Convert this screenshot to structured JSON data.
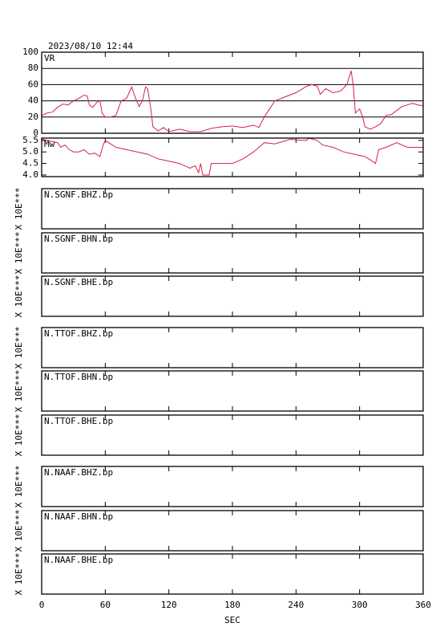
{
  "timestamp": "2023/08/10 12:44",
  "x_axis": {
    "label": "SEC",
    "xlim": [
      0,
      360
    ],
    "xticks": [
      0,
      60,
      120,
      180,
      240,
      300,
      360
    ]
  },
  "chart_data": [
    {
      "type": "line",
      "title": "VR",
      "color": "#d6204a",
      "grid": true,
      "ylim": [
        0,
        100
      ],
      "yticks": [
        0,
        20,
        40,
        60,
        80,
        100
      ],
      "x": [
        0,
        5,
        10,
        15,
        20,
        25,
        30,
        35,
        40,
        43,
        45,
        48,
        52,
        55,
        57,
        60,
        65,
        70,
        75,
        80,
        85,
        88,
        92,
        95,
        98,
        100,
        103,
        105,
        110,
        115,
        120,
        130,
        140,
        150,
        160,
        170,
        180,
        190,
        200,
        205,
        210,
        215,
        220,
        230,
        240,
        250,
        255,
        260,
        263,
        268,
        275,
        282,
        288,
        292,
        294,
        296,
        300,
        303,
        305,
        310,
        315,
        320,
        325,
        330,
        335,
        340,
        345,
        350,
        355,
        360
      ],
      "values": [
        22,
        25,
        26,
        32,
        36,
        35,
        40,
        43,
        47,
        46,
        35,
        32,
        38,
        40,
        25,
        20,
        20,
        22,
        40,
        43,
        57,
        45,
        33,
        40,
        57,
        55,
        30,
        8,
        3,
        7,
        2,
        5,
        2,
        2,
        6,
        8,
        9,
        7,
        10,
        7,
        20,
        30,
        40,
        45,
        50,
        58,
        60,
        58,
        48,
        55,
        50,
        52,
        60,
        77,
        60,
        25,
        30,
        20,
        8,
        5,
        8,
        12,
        22,
        23,
        28,
        33,
        35,
        37,
        35,
        34
      ]
    },
    {
      "type": "line",
      "title": "Mw",
      "color": "#d6204a",
      "grid": false,
      "ylim": [
        3.93,
        5.6
      ],
      "yticks": [
        {
          "value": 4.0,
          "label": "4.0"
        },
        {
          "value": 4.5,
          "label": "4.5"
        },
        {
          "value": 5.0,
          "label": "5.0"
        },
        {
          "value": 5.5,
          "label": "5.5"
        }
      ],
      "x": [
        0,
        5,
        10,
        15,
        18,
        22,
        26,
        30,
        35,
        40,
        45,
        50,
        55,
        58,
        60,
        65,
        70,
        80,
        90,
        100,
        110,
        120,
        130,
        140,
        145,
        148,
        150,
        152,
        158,
        160,
        180,
        190,
        200,
        205,
        210,
        220,
        235,
        245,
        250,
        252,
        260,
        265,
        275,
        285,
        295,
        305,
        312,
        315,
        318,
        325,
        335,
        345,
        360
      ],
      "values": [
        5.55,
        5.5,
        5.45,
        5.4,
        5.2,
        5.3,
        5.1,
        5.0,
        5.0,
        5.1,
        4.9,
        4.95,
        4.8,
        5.3,
        5.5,
        5.35,
        5.2,
        5.1,
        5.0,
        4.9,
        4.7,
        4.6,
        4.5,
        4.3,
        4.4,
        4.1,
        4.5,
        4.0,
        4.0,
        4.5,
        4.5,
        4.7,
        5.0,
        5.2,
        5.4,
        5.35,
        5.55,
        5.5,
        5.5,
        5.6,
        5.5,
        5.3,
        5.2,
        5.0,
        4.9,
        4.8,
        4.6,
        4.5,
        5.1,
        5.2,
        5.4,
        5.2,
        5.2
      ]
    }
  ],
  "traces": [
    {
      "label": "N.SGNF.BHZ.bp",
      "scale_label": "X 10E***"
    },
    {
      "label": "N.SGNF.BHN.bp",
      "scale_label": "X 10E***"
    },
    {
      "label": "N.SGNF.BHE.bp",
      "scale_label": "X 10E***"
    },
    {
      "label": "N.TTOF.BHZ.bp",
      "scale_label": "X 10E***"
    },
    {
      "label": "N.TTOF.BHN.bp",
      "scale_label": "X 10E***"
    },
    {
      "label": "N.TTOF.BHE.bp",
      "scale_label": "X 10E***"
    },
    {
      "label": "N.NAAF.BHZ.bp",
      "scale_label": "X 10E***"
    },
    {
      "label": "N.NAAF.BHN.bp",
      "scale_label": "X 10E***"
    },
    {
      "label": "N.NAAF.BHE.bp",
      "scale_label": "X 10E***"
    }
  ]
}
